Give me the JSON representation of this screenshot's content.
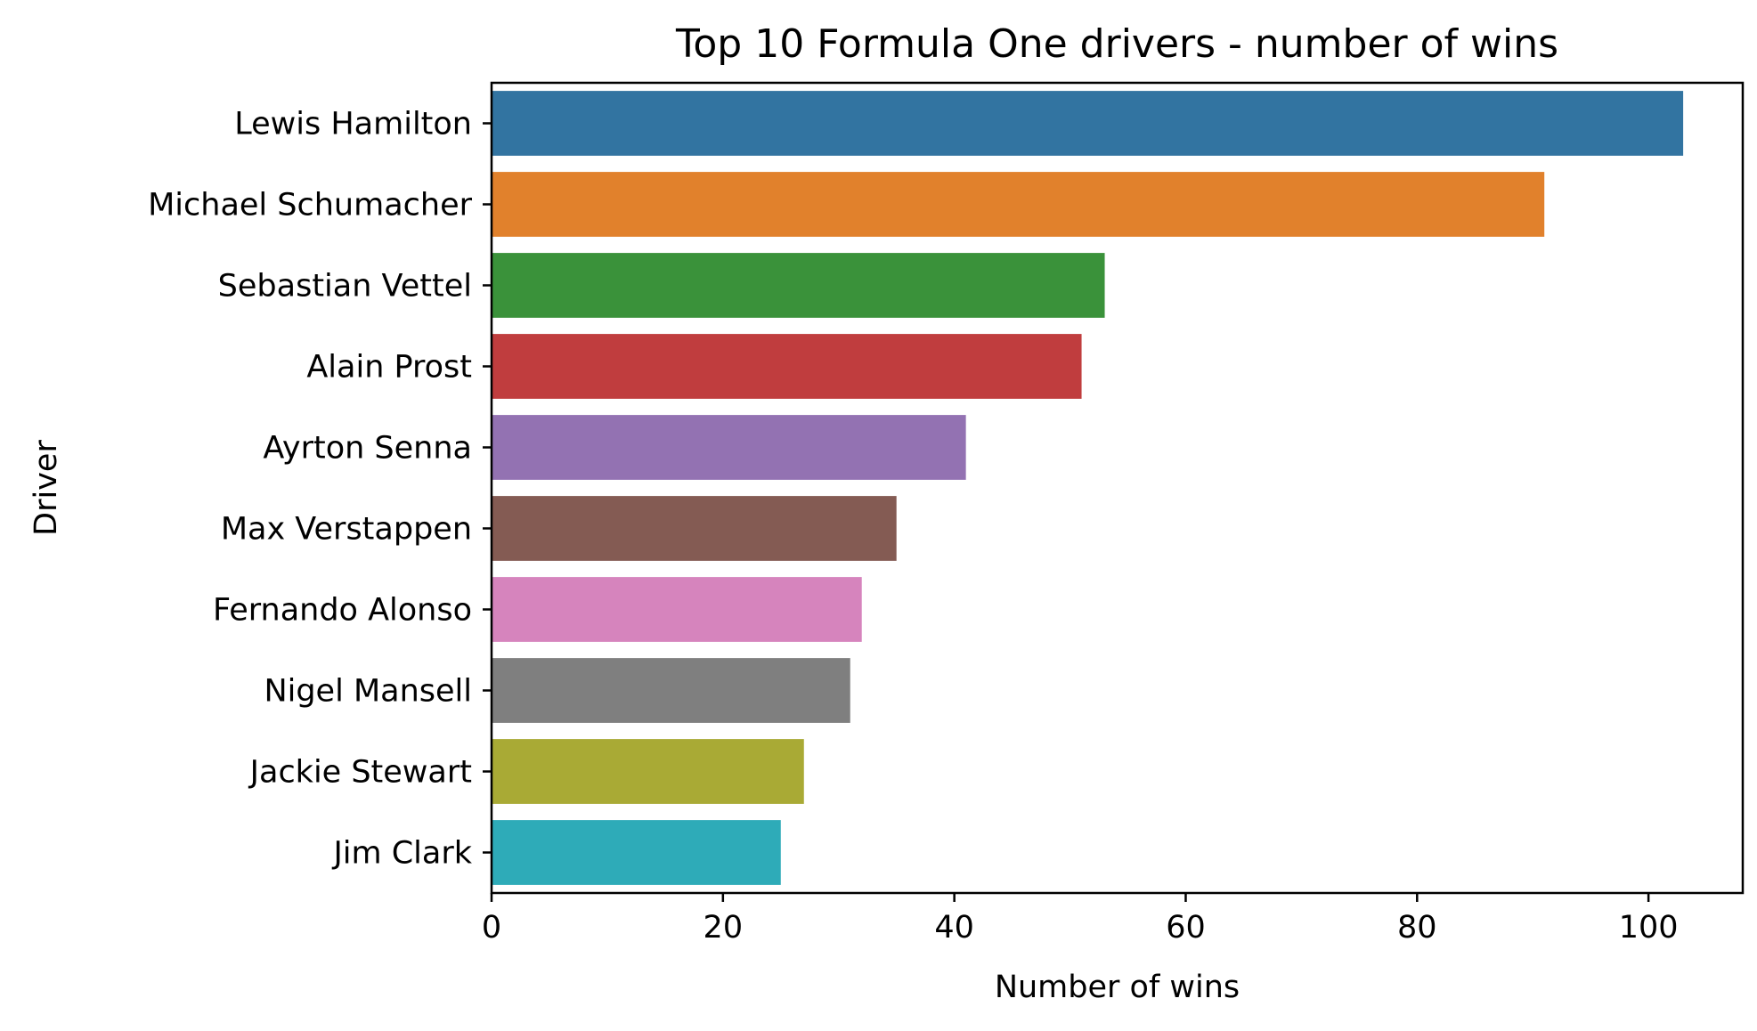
{
  "chart_data": {
    "type": "bar",
    "orientation": "horizontal",
    "title": "Top 10 Formula One drivers - number of wins",
    "xlabel": "Number of wins",
    "ylabel": "Driver",
    "categories": [
      "Lewis Hamilton",
      "Michael Schumacher",
      "Sebastian Vettel",
      "Alain Prost",
      "Ayrton Senna",
      "Max Verstappen",
      "Fernando Alonso",
      "Nigel Mansell",
      "Jackie Stewart",
      "Jim Clark"
    ],
    "values": [
      103,
      91,
      53,
      51,
      41,
      35,
      32,
      31,
      27,
      25
    ],
    "colors": [
      "#3274a1",
      "#e1812c",
      "#3a923a",
      "#c03d3e",
      "#9372b2",
      "#845b53",
      "#d684bd",
      "#7f7f7f",
      "#a9aa35",
      "#2eabb8"
    ],
    "xlim": [
      0,
      108.15
    ],
    "xticks": [
      0,
      20,
      40,
      60,
      80,
      100
    ],
    "grid": false,
    "legend": "none"
  }
}
